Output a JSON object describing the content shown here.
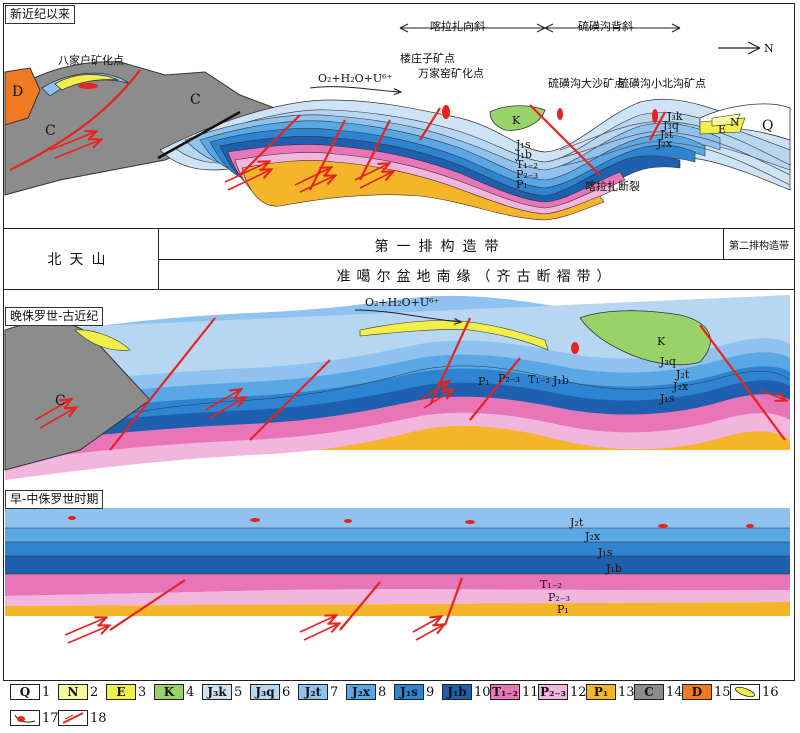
{
  "panels": {
    "recent": {
      "title": "新近纪以来",
      "top_labels": {
        "anticline_left": "喀拉扎向斜",
        "anticline_right": "硫磺沟背斜",
        "north": "N"
      },
      "annotations": {
        "bajiahu": "八家户矿化点",
        "louzhuangzi": "楼庄子矿点",
        "wanjiagou": "万家窑矿化点",
        "liuhuanggou_dasha": "硫磺沟大沙矿点",
        "liuhuanggou_xiaobei": "硫磺沟小北沟矿点",
        "fault": "喀拉扎断裂",
        "fluid": "O₂+H₂O+U⁶⁺"
      },
      "symbols": {
        "D": "D",
        "C1": "C",
        "C2": "C",
        "K": "K",
        "Q": "Q",
        "N": "N",
        "E": "E",
        "J3k": "J₃k",
        "J3q": "J₃q",
        "J2t": "J₂t",
        "J2x": "J₂x",
        "J1s": "J₁s",
        "J1b": "J₁b",
        "T": "T₁₋₂",
        "P23": "P₂₋₃",
        "P1": "P₁"
      }
    },
    "band": {
      "left": "北天山",
      "first_zone": "第一排构造带",
      "second_zone": "第二排构造带",
      "margin": "准噶尔盆地南缘（齐古断褶带）"
    },
    "late": {
      "title": "晚侏罗世-古近纪",
      "fluid": "O₂+H₂O+U⁶⁺",
      "symbols": {
        "C": "C",
        "K": "K",
        "P1": "P₁",
        "P23": "P₂₋₃",
        "T": "T₁₋₂",
        "J1b": "J₁b",
        "J3q": "J₃q",
        "J2t": "J₂t",
        "J2x": "J₂x",
        "J1s": "J₁s"
      }
    },
    "early": {
      "title": "早-中侏罗世时期",
      "symbols": {
        "J2t": "J₂t",
        "J2x": "J₂x",
        "J1s": "J₁s",
        "J1b": "J₁b",
        "T": "T₁₋₂",
        "P23": "P₂₋₃",
        "P1": "P₁"
      }
    }
  },
  "legend": [
    {
      "sym": "Q",
      "num": "1",
      "color": "#ffffff"
    },
    {
      "sym": "N",
      "num": "2",
      "color": "#f7f7a0"
    },
    {
      "sym": "E",
      "num": "3",
      "color": "#f2ee4a"
    },
    {
      "sym": "K",
      "num": "4",
      "color": "#9ad26a"
    },
    {
      "sym": "J₃k",
      "num": "5",
      "color": "#cfe3f6"
    },
    {
      "sym": "J₃q",
      "num": "6",
      "color": "#b7d6f2"
    },
    {
      "sym": "J₂t",
      "num": "7",
      "color": "#8fc2ee"
    },
    {
      "sym": "J₂x",
      "num": "8",
      "color": "#5aa7e6"
    },
    {
      "sym": "J₁s",
      "num": "9",
      "color": "#2e84d1"
    },
    {
      "sym": "J₁b",
      "num": "10",
      "color": "#1e5fae"
    },
    {
      "sym": "T₁₋₂",
      "num": "11",
      "color": "#e975b9"
    },
    {
      "sym": "P₂₋₃",
      "num": "12",
      "color": "#f2b6de"
    },
    {
      "sym": "P₁",
      "num": "13",
      "color": "#f5b52a"
    },
    {
      "sym": "C",
      "num": "14",
      "color": "#8c8c8c"
    },
    {
      "sym": "D",
      "num": "15",
      "color": "#f07a22"
    },
    {
      "sym": "",
      "num": "16",
      "color": "#ffffff"
    },
    {
      "sym": "",
      "num": "17",
      "color": "#ffffff"
    },
    {
      "sym": "",
      "num": "18",
      "color": "#ffffff"
    }
  ],
  "colors": {
    "fault": "#e8231e"
  }
}
